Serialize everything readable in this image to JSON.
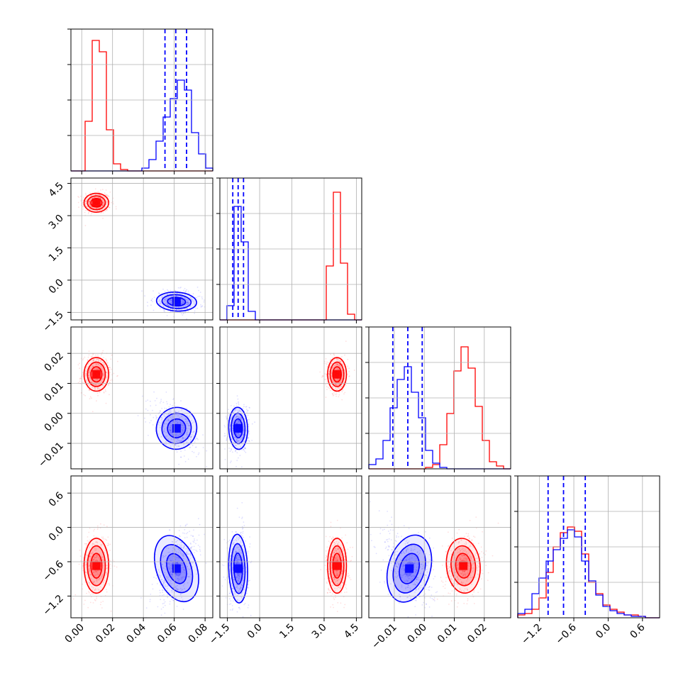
{
  "chart_data": {
    "type": "corner",
    "parameters": [
      {
        "ticks": [
          0.0,
          0.02,
          0.04,
          0.06,
          0.08
        ],
        "tick_labels": [
          "0.00",
          "0.02",
          "0.04",
          "0.06",
          "0.08"
        ],
        "range": [
          -0.007,
          0.085
        ]
      },
      {
        "ticks": [
          -1.5,
          0.0,
          1.5,
          3.0,
          4.5
        ],
        "tick_labels": [
          "−1.5",
          "0.0",
          "1.5",
          "3.0",
          "4.5"
        ],
        "range": [
          -1.85,
          4.75
        ]
      },
      {
        "ticks": [
          -0.01,
          0.0,
          0.01,
          0.02
        ],
        "tick_labels": [
          "−0.01",
          "0.00",
          "0.01",
          "0.02"
        ],
        "range": [
          -0.0185,
          0.0288
        ]
      },
      {
        "ticks": [
          -1.2,
          -0.6,
          0.0,
          0.6
        ],
        "tick_labels": [
          "−1.2",
          "−0.6",
          "0.0",
          "0.6"
        ],
        "range": [
          -1.58,
          0.9
        ]
      }
    ],
    "series": [
      {
        "color": "#ff0000",
        "mean": [
          0.0095,
          3.6,
          0.013,
          -0.67
        ],
        "std": [
          0.004,
          0.22,
          0.0028,
          0.24
        ]
      },
      {
        "color": "#0000ff",
        "mean": [
          0.0615,
          -1.0,
          -0.005,
          -0.72
        ],
        "std": [
          0.0065,
          0.22,
          0.0035,
          0.3
        ]
      }
    ],
    "quantile_lines": {
      "color": "#0000ff",
      "values": [
        [
          0.054,
          0.061,
          0.068
        ],
        [
          -1.25,
          -1.0,
          -0.75
        ],
        [
          -0.0105,
          -0.0055,
          -0.0007
        ],
        [
          -1.05,
          -0.78,
          -0.4
        ]
      ]
    },
    "histograms": [
      {
        "edges": [
          -0.007,
          -0.0024,
          0.0022,
          0.0068,
          0.0114,
          0.016,
          0.0206,
          0.0252,
          0.0298,
          0.0344,
          0.039,
          0.0436,
          0.0482,
          0.0528,
          0.0574,
          0.062,
          0.0666,
          0.0712,
          0.0758,
          0.0804,
          0.085
        ],
        "red": [
          0,
          0,
          0.35,
          0.92,
          0.84,
          0.29,
          0.05,
          0.01,
          0,
          0,
          0,
          0,
          0,
          0,
          0,
          0,
          0,
          0,
          0,
          0
        ],
        "blue": [
          0,
          0,
          0,
          0,
          0,
          0,
          0,
          0,
          0,
          0,
          0.02,
          0.08,
          0.21,
          0.38,
          0.51,
          0.64,
          0.57,
          0.27,
          0.12,
          0.02
        ]
      },
      {
        "edges": [
          -1.85,
          -1.52,
          -1.19,
          -0.86,
          -0.53,
          -0.2,
          0.13,
          0.46,
          0.79,
          1.12,
          1.45,
          1.78,
          2.11,
          2.44,
          2.77,
          3.1,
          3.43,
          3.76,
          4.09,
          4.42,
          4.75
        ],
        "red": [
          0,
          0,
          0,
          0,
          0,
          0,
          0,
          0,
          0,
          0,
          0,
          0,
          0,
          0,
          0,
          0.38,
          0.9,
          0.4,
          0.04,
          0
        ],
        "blue": [
          0,
          0.1,
          0.8,
          0.55,
          0.06,
          0,
          0,
          0,
          0,
          0,
          0,
          0,
          0,
          0,
          0,
          0,
          0,
          0,
          0,
          0
        ]
      },
      {
        "edges": [
          -0.0185,
          -0.016135,
          -0.01377,
          -0.011405,
          -0.00904,
          -0.006675,
          -0.00431,
          -0.001945,
          0.00042,
          0.002785,
          0.00515,
          0.007515,
          0.00988,
          0.012245,
          0.01461,
          0.016975,
          0.01934,
          0.021705,
          0.02407,
          0.026435,
          0.0288
        ],
        "red": [
          0,
          0,
          0,
          0,
          0,
          0,
          0,
          0,
          0.01,
          0.03,
          0.17,
          0.39,
          0.69,
          0.86,
          0.71,
          0.44,
          0.2,
          0.05,
          0.02,
          0
        ],
        "blue": [
          0.03,
          0.07,
          0.2,
          0.43,
          0.63,
          0.72,
          0.54,
          0.36,
          0.13,
          0.04,
          0.01,
          0,
          0,
          0,
          0,
          0,
          0,
          0,
          0,
          0
        ]
      },
      {
        "edges": [
          -1.58,
          -1.456,
          -1.332,
          -1.208,
          -1.084,
          -0.96,
          -0.836,
          -0.712,
          -0.588,
          -0.464,
          -0.34,
          -0.216,
          -0.092,
          0.032,
          0.156,
          0.28,
          0.404,
          0.528,
          0.652,
          0.776,
          0.9
        ],
        "red": [
          0.02,
          0.03,
          0.06,
          0.14,
          0.32,
          0.5,
          0.6,
          0.64,
          0.61,
          0.45,
          0.25,
          0.17,
          0.09,
          0.06,
          0.04,
          0.02,
          0.02,
          0.01,
          0,
          0
        ],
        "blue": [
          0.03,
          0.06,
          0.17,
          0.28,
          0.4,
          0.48,
          0.56,
          0.62,
          0.57,
          0.4,
          0.26,
          0.16,
          0.08,
          0.05,
          0.03,
          0.02,
          0.01,
          0.01,
          0,
          0
        ]
      }
    ],
    "grid": true,
    "legend": "none"
  }
}
